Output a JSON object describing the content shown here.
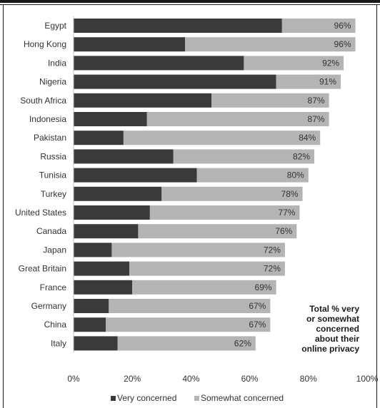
{
  "chart_data": {
    "type": "bar",
    "orientation": "horizontal",
    "stacked": true,
    "categories": [
      "Egypt",
      "Hong Kong",
      "India",
      "Nigeria",
      "South Africa",
      "Indonesia",
      "Pakistan",
      "Russia",
      "Tunisia",
      "Turkey",
      "United States",
      "Canada",
      "Japan",
      "Great Britain",
      "France",
      "Germany",
      "China",
      "Italy"
    ],
    "series": [
      {
        "name": "Very concerned",
        "color": "#3a3a3a",
        "values": [
          71,
          38,
          58,
          69,
          47,
          25,
          17,
          34,
          42,
          30,
          26,
          22,
          13,
          19,
          20,
          12,
          11,
          15
        ]
      },
      {
        "name": "Somewhat concerned",
        "color": "#b4b4b4",
        "values": [
          25,
          58,
          34,
          22,
          40,
          62,
          67,
          48,
          38,
          48,
          51,
          54,
          59,
          53,
          49,
          55,
          56,
          47
        ]
      }
    ],
    "total_labels": [
      "96%",
      "96%",
      "92%",
      "91%",
      "87%",
      "87%",
      "84%",
      "82%",
      "80%",
      "78%",
      "77%",
      "76%",
      "72%",
      "72%",
      "69%",
      "67%",
      "67%",
      "62%"
    ],
    "x_ticks": [
      0,
      20,
      40,
      60,
      80,
      100
    ],
    "x_tick_labels": [
      "0%",
      "20%",
      "40%",
      "60%",
      "80%",
      "100%"
    ],
    "xlim": [
      0,
      100
    ],
    "legend_position": "bottom",
    "annotation_lines": [
      "Total % very",
      "or somewhat",
      "concerned",
      "about their",
      "online privacy"
    ]
  }
}
